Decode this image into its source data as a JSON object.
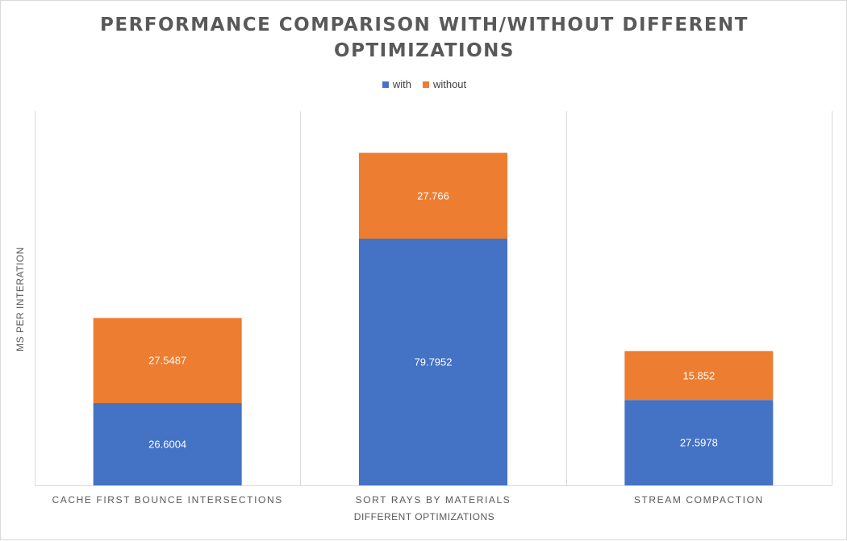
{
  "chart_data": {
    "type": "bar",
    "stacked": true,
    "title_lines": [
      "PERFORMANCE COMPARISON WITH/WITHOUT DIFFERENT",
      "OPTIMIZATIONS"
    ],
    "xlabel": "DIFFERENT OPTIMIZATIONS",
    "ylabel": "MS PER INTERATION",
    "categories": [
      "CACHE FIRST BOUNCE INTERSECTIONS",
      "SORT RAYS BY MATERIALS",
      "STREAM COMPACTION"
    ],
    "series": [
      {
        "name": "with",
        "values": [
          26.6004,
          79.7952,
          27.5978
        ],
        "color": "#4472c4"
      },
      {
        "name": "without",
        "values": [
          27.5487,
          27.766,
          15.852
        ],
        "color": "#ed7d31"
      }
    ],
    "ylim": [
      0,
      121
    ],
    "grid": "vertical category separators",
    "legend_position": "top"
  }
}
